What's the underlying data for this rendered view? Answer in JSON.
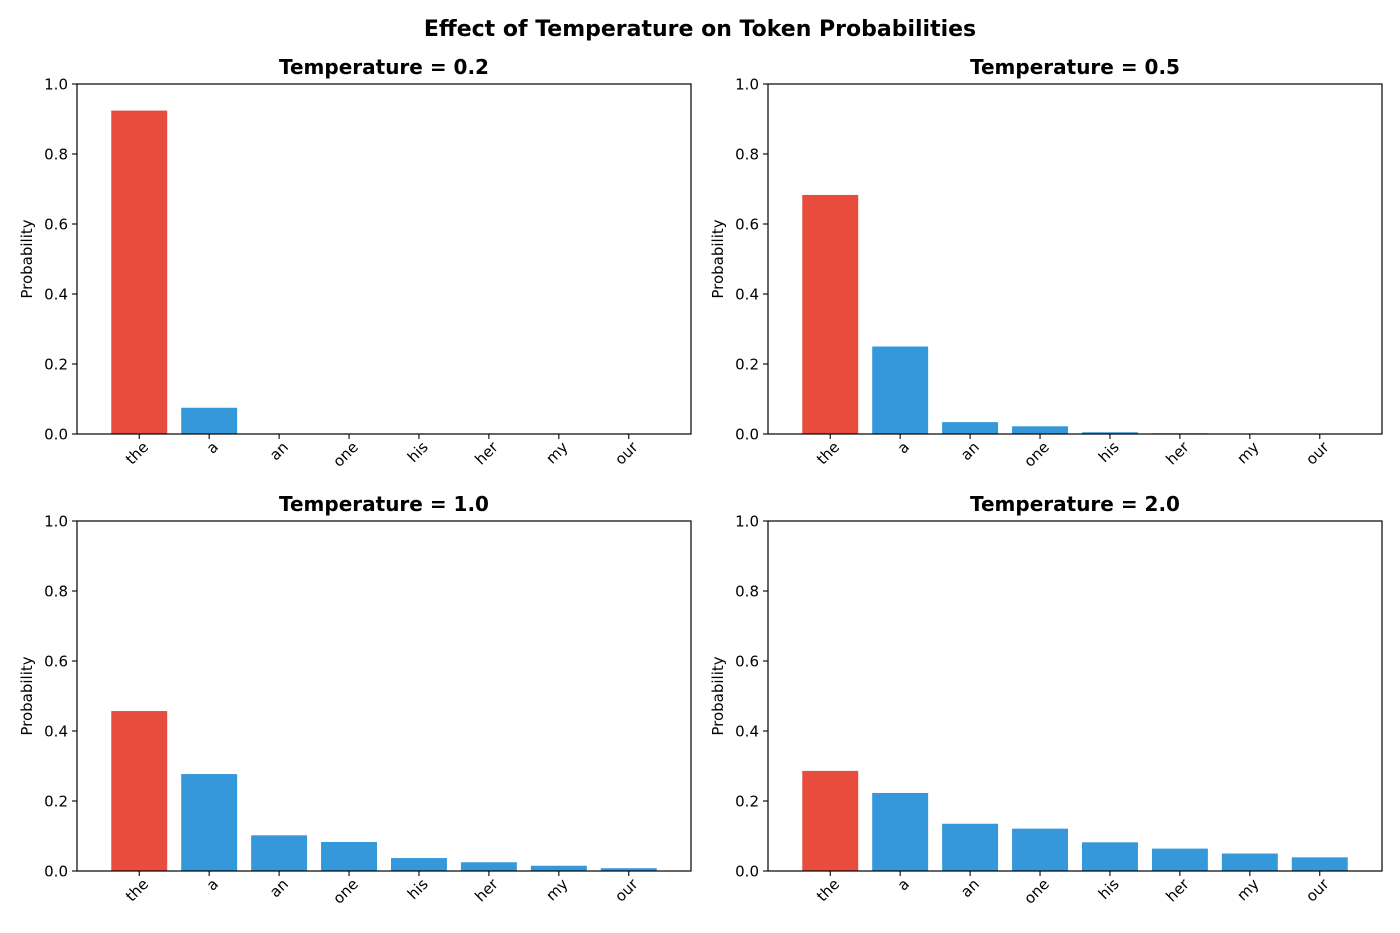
{
  "figure": {
    "suptitle": "Effect of Temperature on Token Probabilities"
  },
  "colors": {
    "highlight": "#e74c3c",
    "bar": "#3498db"
  },
  "chart_data": [
    {
      "type": "bar",
      "title": "Temperature = 0.2",
      "xlabel": "",
      "ylabel": "Probability",
      "ylim": [
        0,
        1.0
      ],
      "yticks": [
        "0.0",
        "0.2",
        "0.4",
        "0.6",
        "0.8",
        "1.0"
      ],
      "categories": [
        "the",
        "a",
        "an",
        "one",
        "his",
        "her",
        "my",
        "our"
      ],
      "values": [
        0.924,
        0.075,
        0.0008,
        0.0003,
        1e-05,
        1e-06,
        1e-07,
        0.0
      ],
      "highlight_index": 0,
      "grid": false
    },
    {
      "type": "bar",
      "title": "Temperature = 0.5",
      "xlabel": "",
      "ylabel": "Probability",
      "ylim": [
        0,
        1.0
      ],
      "yticks": [
        "0.0",
        "0.2",
        "0.4",
        "0.6",
        "0.8",
        "1.0"
      ],
      "categories": [
        "the",
        "a",
        "an",
        "one",
        "his",
        "her",
        "my",
        "our"
      ],
      "values": [
        0.683,
        0.25,
        0.034,
        0.022,
        0.005,
        0.002,
        0.001,
        0.0005
      ],
      "highlight_index": 0,
      "grid": false
    },
    {
      "type": "bar",
      "title": "Temperature = 1.0",
      "xlabel": "",
      "ylabel": "Probability",
      "ylim": [
        0,
        1.0
      ],
      "yticks": [
        "0.0",
        "0.2",
        "0.4",
        "0.6",
        "0.8",
        "1.0"
      ],
      "categories": [
        "the",
        "a",
        "an",
        "one",
        "his",
        "her",
        "my",
        "our"
      ],
      "values": [
        0.457,
        0.277,
        0.102,
        0.083,
        0.037,
        0.025,
        0.015,
        0.008
      ],
      "highlight_index": 0,
      "grid": false
    },
    {
      "type": "bar",
      "title": "Temperature = 2.0",
      "xlabel": "",
      "ylabel": "Probability",
      "ylim": [
        0,
        1.0
      ],
      "yticks": [
        "0.0",
        "0.2",
        "0.4",
        "0.6",
        "0.8",
        "1.0"
      ],
      "categories": [
        "the",
        "a",
        "an",
        "one",
        "his",
        "her",
        "my",
        "our"
      ],
      "values": [
        0.286,
        0.223,
        0.135,
        0.121,
        0.082,
        0.064,
        0.05,
        0.039
      ],
      "highlight_index": 0,
      "grid": false
    }
  ]
}
